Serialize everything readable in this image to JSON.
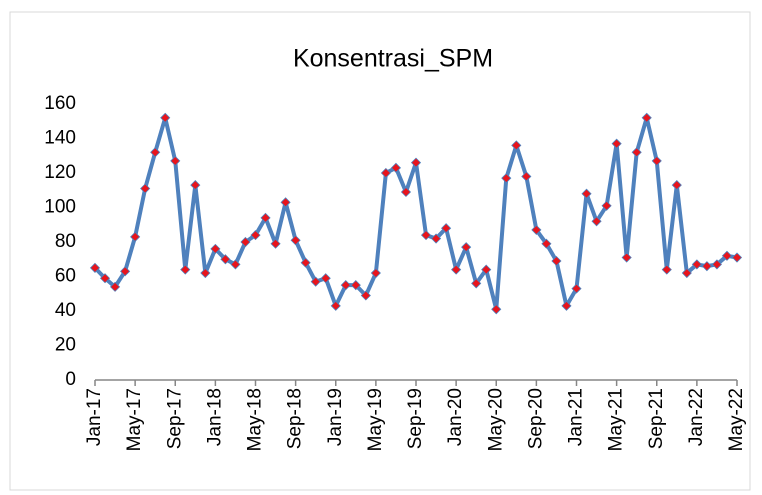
{
  "chart_data": {
    "type": "line",
    "title": "Konsentrasi_SPM",
    "categories": [
      "Jan-17",
      null,
      null,
      null,
      "May-17",
      null,
      null,
      null,
      "Sep-17",
      null,
      null,
      null,
      "Jan-18",
      null,
      null,
      null,
      "May-18",
      null,
      null,
      null,
      "Sep-18",
      null,
      null,
      null,
      "Jan-19",
      null,
      null,
      null,
      "May-19",
      null,
      null,
      null,
      "Sep-19",
      null,
      null,
      null,
      "Jan-20",
      null,
      null,
      null,
      "May-20",
      null,
      null,
      null,
      "Sep-20",
      null,
      null,
      null,
      "Jan-21",
      null,
      null,
      null,
      "May-21",
      null,
      null,
      null,
      "Sep-21",
      null,
      null,
      null,
      "Jan-22",
      null,
      null,
      null,
      "May-22"
    ],
    "values": [
      65,
      59,
      54,
      63,
      83,
      111,
      132,
      152,
      127,
      64,
      113,
      62,
      76,
      70,
      67,
      80,
      84,
      94,
      79,
      103,
      81,
      68,
      57,
      59,
      43,
      55,
      55,
      49,
      62,
      120,
      123,
      109,
      126,
      84,
      82,
      88,
      64,
      77,
      56,
      64,
      41,
      117,
      136,
      118,
      87,
      79,
      69,
      43,
      53,
      108,
      92,
      101,
      137,
      71,
      132,
      152,
      127,
      64,
      113,
      62,
      67,
      66,
      67,
      72,
      71
    ],
    "color": "#4f81bd",
    "marker_color": "#e8141c",
    "ylim": [
      0,
      160
    ],
    "yticks": [
      0,
      20,
      40,
      60,
      80,
      100,
      120,
      140,
      160
    ],
    "grid": false
  }
}
